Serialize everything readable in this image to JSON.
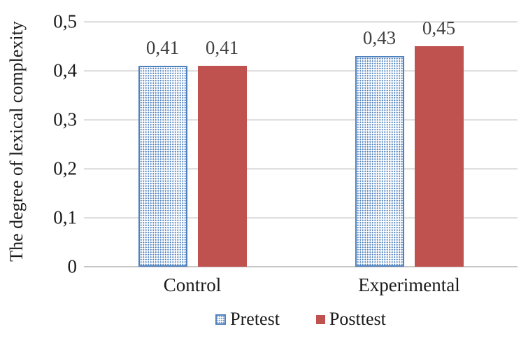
{
  "chart_data": {
    "type": "bar",
    "title": "",
    "ylabel": "The degree of lexical complexity",
    "xlabel": "",
    "categories": [
      "Control",
      "Experimental"
    ],
    "series": [
      {
        "name": "Pretest",
        "values": [
          0.41,
          0.43
        ],
        "value_labels": [
          "0,41",
          "0,43"
        ],
        "fill": "pattern-dots",
        "color": "#4F81BD"
      },
      {
        "name": "Posttest",
        "values": [
          0.41,
          0.45
        ],
        "value_labels": [
          "0,41",
          "0,45"
        ],
        "fill": "solid",
        "color": "#BF514F"
      }
    ],
    "ylim": [
      0,
      0.5
    ],
    "yticks": [
      {
        "value": 0,
        "label": "0"
      },
      {
        "value": 0.1,
        "label": "0,1"
      },
      {
        "value": 0.2,
        "label": "0,2"
      },
      {
        "value": 0.3,
        "label": "0,3"
      },
      {
        "value": 0.4,
        "label": "0,4"
      },
      {
        "value": 0.5,
        "label": "0,5"
      }
    ],
    "grid": true,
    "legend_position": "bottom",
    "colors": {
      "gridline": "#D9D9D9",
      "baseline": "#C6C6C6",
      "data_label": "#404040",
      "axis_text": "#1a1a1a",
      "background": "#FFFFFF"
    }
  }
}
